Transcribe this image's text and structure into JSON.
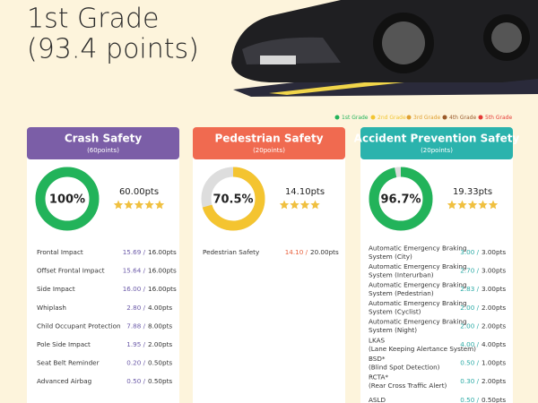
{
  "header": {
    "title_lines": [
      "1st Grade",
      "(93.4 points)"
    ]
  },
  "legend": [
    {
      "label": "1st Grade",
      "color": "#22b35a"
    },
    {
      "label": "2nd Grade",
      "color": "#f2c530"
    },
    {
      "label": "3rd Grade",
      "color": "#e0a030"
    },
    {
      "label": "4th Grade",
      "color": "#9a5a2a"
    },
    {
      "label": "5th Grade",
      "color": "#e53935"
    }
  ],
  "panels": [
    {
      "title": "Crash Safety",
      "subtitle": "(60points)",
      "color": "#7b5ea7",
      "score_color": "#6b5aa8",
      "ring_color": "#22b35a",
      "score": 100,
      "score_label": "100%",
      "total": "60.00pts",
      "stars": 5,
      "rows": [
        {
          "name": [
            "Frontal Impact"
          ],
          "score": "15.69 /",
          "max": "16.00pts"
        },
        {
          "name": [
            "Offset Frontal Impact"
          ],
          "score": "15.64 /",
          "max": "16.00pts"
        },
        {
          "name": [
            "Side Impact"
          ],
          "score": "16.00 /",
          "max": "16.00pts"
        },
        {
          "name": [
            "Whiplash"
          ],
          "score": "2.80 /",
          "max": "4.00pts"
        },
        {
          "name": [
            "Child Occupant Protection"
          ],
          "score": "7.88 /",
          "max": "8.00pts"
        },
        {
          "name": [
            "Pole Side Impact"
          ],
          "score": "1.95 /",
          "max": "2.00pts"
        },
        {
          "name": [
            "Seat Belt Reminder"
          ],
          "score": "0.20 /",
          "max": "0.50pts"
        },
        {
          "name": [
            "Advanced Airbag"
          ],
          "score": "0.50 /",
          "max": "0.50pts"
        }
      ]
    },
    {
      "title": "Pedestrian Safety",
      "subtitle": "(20points)",
      "color": "#f06a50",
      "score_color": "#e8603c",
      "ring_color": "#f4c430",
      "score": 70.5,
      "score_label": "70.5%",
      "total": "14.10pts",
      "stars": 4,
      "rows": [
        {
          "name": [
            "Pedestrian Safety"
          ],
          "score": "14.10 /",
          "max": "20.00pts"
        }
      ]
    },
    {
      "title": "Accident Prevention Safety",
      "subtitle": "(20points)",
      "color": "#2bb3ad",
      "score_color": "#2aaaa5",
      "ring_color": "#22b35a",
      "score": 96.7,
      "score_label": "96.7%",
      "total": "19.33pts",
      "stars": 5,
      "rows": [
        {
          "name": [
            "Automatic Emergency Braking",
            "System (City)"
          ],
          "score": "3.00 /",
          "max": "3.00pts"
        },
        {
          "name": [
            "Automatic Emergency Braking",
            "System (Interurban)"
          ],
          "score": "2.70 /",
          "max": "3.00pts"
        },
        {
          "name": [
            "Automatic Emergency Braking",
            "System (Pedestrian)"
          ],
          "score": "2.83 /",
          "max": "3.00pts"
        },
        {
          "name": [
            "Automatic Emergency Braking",
            "System (Cyclist)"
          ],
          "score": "2.00 /",
          "max": "2.00pts"
        },
        {
          "name": [
            "Automatic Emergency Braking",
            "System (Night)"
          ],
          "score": "2.00 /",
          "max": "2.00pts"
        },
        {
          "name": [
            "LKAS",
            "(Lane Keeping Alertance System)"
          ],
          "score": "4.00 /",
          "max": "4.00pts"
        },
        {
          "name": [
            "BSD*",
            "(Blind Spot Detection)"
          ],
          "score": "0.50 /",
          "max": "1.00pts"
        },
        {
          "name": [
            "RCTA*",
            "(Rear Cross Traffic Alert)"
          ],
          "score": "0.30 /",
          "max": "2.00pts"
        },
        {
          "name": [
            "ASLD"
          ],
          "score": "0.50 /",
          "max": "0.50pts"
        }
      ]
    }
  ]
}
